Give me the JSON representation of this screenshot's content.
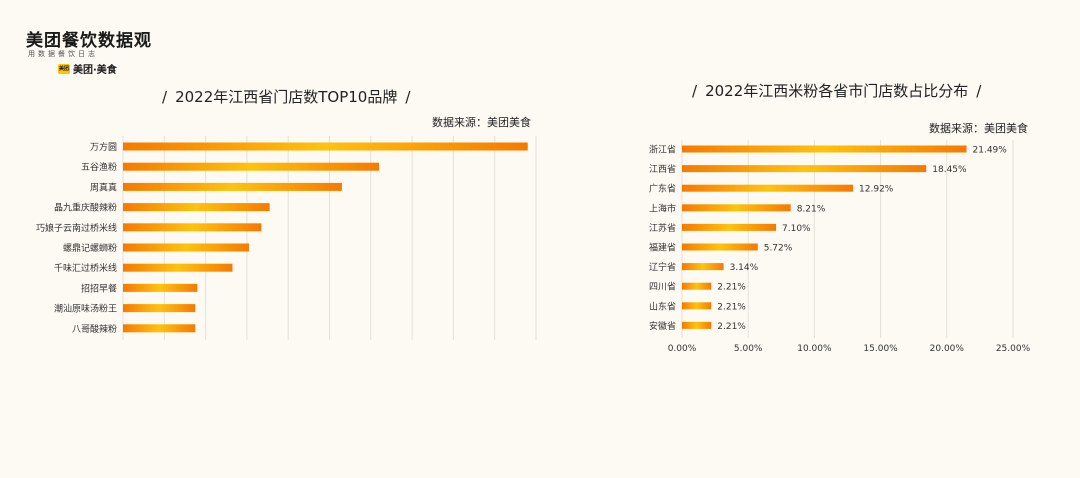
{
  "logo": {
    "title": "美团餐饮数据观",
    "subtitle": "用数据餐饮日志",
    "badge": "美团",
    "brand": "美团·美食"
  },
  "colors": {
    "bar_start": "#f57a00",
    "bar_mid": "#ffc20e",
    "bar_end": "#f57a00",
    "grid": "#e4e0da"
  },
  "chart_data": [
    {
      "type": "bar",
      "orientation": "horizontal",
      "title": "2022年江西省门店数TOP10品牌",
      "source": "数据来源：美团美食",
      "categories": [
        "万方圆",
        "五谷渔粉",
        "周真真",
        "晶九重庆酸辣粉",
        "巧娘子云南过桥米线",
        "螺鼎记螺蛳粉",
        "千味汇过桥米线",
        "招招早餐",
        "潮汕原味汤粉王",
        "八哥酸辣粉"
      ],
      "values": [
        98,
        62,
        53,
        35.5,
        33.5,
        30.5,
        26.5,
        18,
        17.5,
        17.5
      ],
      "xlim": [
        0,
        100
      ],
      "grid": true,
      "tick_labels": false
    },
    {
      "type": "bar",
      "orientation": "horizontal",
      "title": "2022年江西米粉各省市门店数占比分布",
      "source": "数据来源：美团美食",
      "categories": [
        "浙江省",
        "江西省",
        "广东省",
        "上海市",
        "江苏省",
        "福建省",
        "辽宁省",
        "四川省",
        "山东省",
        "安徽省"
      ],
      "values": [
        21.49,
        18.45,
        12.92,
        8.21,
        7.1,
        5.72,
        3.14,
        2.21,
        2.21,
        2.21
      ],
      "value_labels": [
        "21.49%",
        "18.45%",
        "12.92%",
        "8.21%",
        "7.10%",
        "5.72%",
        "3.14%",
        "2.21%",
        "2.21%",
        "2.21%"
      ],
      "xlim": [
        0,
        25
      ],
      "xticks": [
        0,
        5,
        10,
        15,
        20,
        25
      ],
      "xtick_labels": [
        "0.00%",
        "5.00%",
        "10.00%",
        "15.00%",
        "20.00%",
        "25.00%"
      ],
      "grid": true
    }
  ]
}
